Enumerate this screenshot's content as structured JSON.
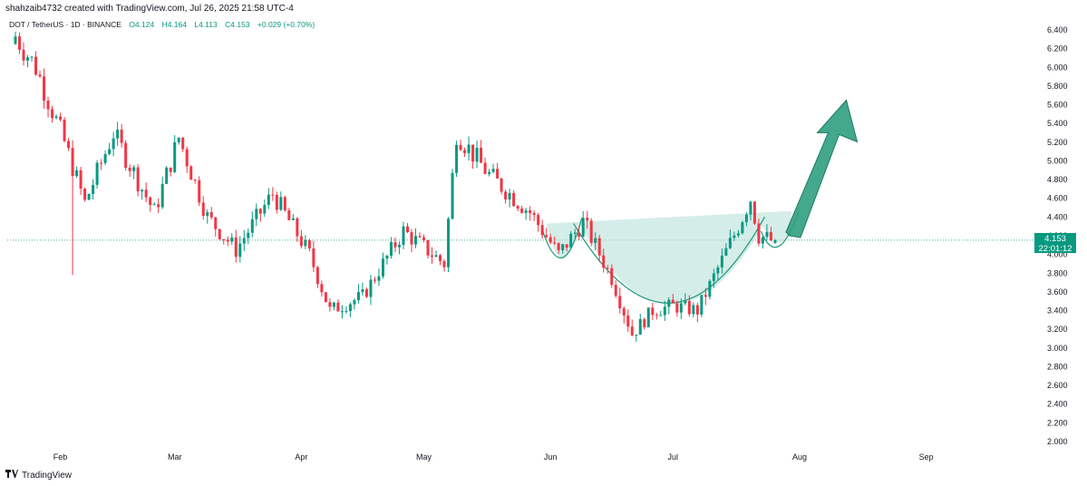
{
  "caption": "shahzaib4732 created with TradingView.com, Jul 26, 2025 21:58 UTC-4",
  "symbol": {
    "name": "DOT / TetherUS · 1D · BINANCE",
    "open": "O4.124",
    "high": "H4.164",
    "low": "L4.113",
    "close": "C4.153",
    "change": "+0.029 (+0.70%)"
  },
  "price_tag": {
    "price": "4.153",
    "countdown": "22:01:12"
  },
  "brand": {
    "logo_text": "TradingView"
  },
  "colors": {
    "up": "#089981",
    "down": "#f23645",
    "pattern_fill": "#b2dfd6",
    "pattern_stroke": "#2a9d7f",
    "arrow": "#2f9e7f",
    "grid_line": "#089981"
  },
  "chart_data": {
    "type": "candlestick",
    "title": "DOT / TetherUS · 1D · BINANCE",
    "y_axis": {
      "ticks": [
        2.0,
        2.2,
        2.4,
        2.6,
        2.8,
        3.0,
        3.2,
        3.4,
        3.6,
        3.8,
        4.0,
        4.2,
        4.4,
        4.6,
        4.8,
        5.0,
        5.2,
        5.4,
        5.6,
        5.8,
        6.0,
        6.2,
        6.4
      ],
      "tick_labels": [
        "2.000",
        "2.200",
        "2.400",
        "2.600",
        "2.800",
        "3.000",
        "3.200",
        "3.400",
        "3.600",
        "3.800",
        "4.000",
        "4.200",
        "4.400",
        "4.600",
        "4.800",
        "5.000",
        "5.200",
        "5.400",
        "5.600",
        "5.800",
        "6.000",
        "6.200",
        "6.400"
      ],
      "range": [
        1.95,
        6.55
      ],
      "position": "right"
    },
    "x_axis": {
      "labels": [
        "Feb",
        "Mar",
        "Apr",
        "May",
        "Jun",
        "Jul",
        "Aug",
        "Sep"
      ],
      "label_dates": [
        "2025-02-01",
        "2025-03-01",
        "2025-04-01",
        "2025-05-01",
        "2025-06-01",
        "2025-07-01",
        "2025-08-01",
        "2025-09-01"
      ],
      "range": [
        "2025-01-20",
        "2025-09-30"
      ]
    },
    "current_price_line": 4.153,
    "key_waypoints": [
      {
        "date": "2025-01-21",
        "close": 6.4
      },
      {
        "date": "2025-01-27",
        "close": 6.0
      },
      {
        "date": "2025-02-03",
        "close": 5.2
      },
      {
        "date": "2025-02-08",
        "close": 4.55
      },
      {
        "date": "2025-02-15",
        "close": 5.3
      },
      {
        "date": "2025-02-25",
        "close": 4.45
      },
      {
        "date": "2025-03-03",
        "close": 5.25
      },
      {
        "date": "2025-03-10",
        "close": 4.4
      },
      {
        "date": "2025-03-17",
        "close": 4.05
      },
      {
        "date": "2025-03-26",
        "close": 4.65
      },
      {
        "date": "2025-04-04",
        "close": 4.0
      },
      {
        "date": "2025-04-09",
        "close": 3.4
      },
      {
        "date": "2025-04-17",
        "close": 3.55
      },
      {
        "date": "2025-04-27",
        "close": 4.25
      },
      {
        "date": "2025-05-07",
        "close": 3.9
      },
      {
        "date": "2025-05-10",
        "close": 5.3
      },
      {
        "date": "2025-05-18",
        "close": 4.85
      },
      {
        "date": "2025-05-28",
        "close": 4.45
      },
      {
        "date": "2025-06-04",
        "close": 4.0
      },
      {
        "date": "2025-06-10",
        "close": 4.35
      },
      {
        "date": "2025-06-17",
        "close": 3.75
      },
      {
        "date": "2025-06-22",
        "close": 3.15
      },
      {
        "date": "2025-06-27",
        "close": 3.4
      },
      {
        "date": "2025-07-02",
        "close": 3.45
      },
      {
        "date": "2025-07-08",
        "close": 3.4
      },
      {
        "date": "2025-07-13",
        "close": 3.85
      },
      {
        "date": "2025-07-18",
        "close": 4.3
      },
      {
        "date": "2025-07-21",
        "close": 4.6
      },
      {
        "date": "2025-07-23",
        "close": 4.2
      },
      {
        "date": "2025-07-26",
        "close": 4.153
      }
    ],
    "annotations": [
      {
        "type": "cup_and_handle",
        "resistance": 4.33,
        "cups": [
          {
            "start": "2025-05-31",
            "end": "2025-06-08",
            "bottom": 3.75
          },
          {
            "start": "2025-06-08",
            "end": "2025-07-23",
            "bottom": 3.1
          },
          {
            "start": "2025-07-23",
            "end": "2025-07-30",
            "bottom": 3.9
          }
        ]
      },
      {
        "type": "arrow_up",
        "from": {
          "date": "2025-07-30",
          "price": 4.2
        },
        "to": {
          "date": "2025-08-12",
          "price": 5.65
        }
      }
    ]
  }
}
